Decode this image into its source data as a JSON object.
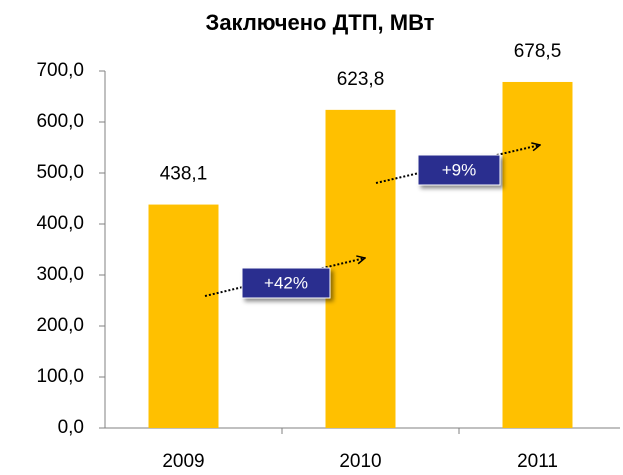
{
  "chart_data": {
    "type": "bar",
    "title": "Заключено ДТП, МВт",
    "categories": [
      "2009",
      "2010",
      "2011"
    ],
    "values": [
      438.1,
      623.8,
      678.5
    ],
    "value_labels": [
      "438,1",
      "623,8",
      "678,5"
    ],
    "color": "#FFC000",
    "ylim": [
      0,
      700
    ],
    "yticks": [
      {
        "value": 0,
        "label": "0,0"
      },
      {
        "value": 100,
        "label": "100,0"
      },
      {
        "value": 200,
        "label": "200,0"
      },
      {
        "value": 300,
        "label": "300,0"
      },
      {
        "value": 400,
        "label": "400,0"
      },
      {
        "value": 500,
        "label": "500,0"
      },
      {
        "value": 600,
        "label": "600,0"
      },
      {
        "value": 700,
        "label": "700,0"
      }
    ],
    "grid": false,
    "annotations": [
      "+42%",
      "+9%"
    ]
  }
}
